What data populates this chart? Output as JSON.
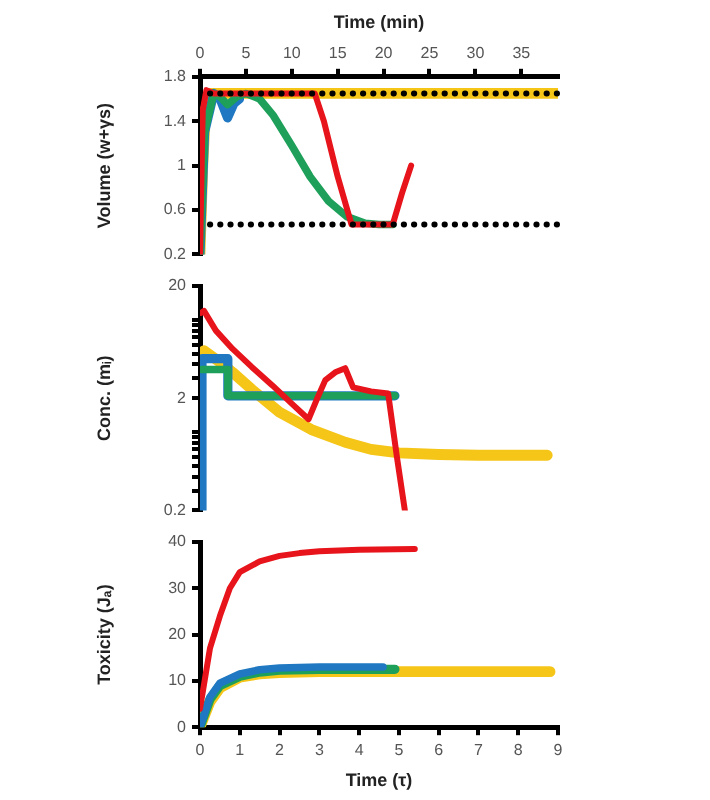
{
  "chart_data": [
    {
      "type": "line",
      "xlabel": "Time (min)",
      "ylabel": "Volume (w+γs)",
      "xlim": [
        0,
        39
      ],
      "xticks": [
        0,
        5,
        10,
        15,
        20,
        25,
        30,
        35
      ],
      "ylim": [
        0.2,
        1.8
      ],
      "yticks": [
        0.2,
        0.6,
        1,
        1.4,
        1.8
      ],
      "grid": false,
      "legend": false,
      "marker": "none",
      "line_style": "solid",
      "ref_lines": [
        {
          "axis": "y",
          "value": 1.65,
          "color": "#000000",
          "line_style": "dotted"
        },
        {
          "axis": "y",
          "value": 0.47,
          "color": "#000000",
          "line_style": "dotted"
        }
      ],
      "series": [
        {
          "color": "#f5c518",
          "x": [
            0,
            0.3,
            0.6,
            1,
            39
          ],
          "values": [
            0.2,
            1.0,
            1.5,
            1.65,
            1.65
          ]
        },
        {
          "color": "#1f78c1",
          "x": [
            0,
            0.5,
            1.5,
            2.2,
            3,
            3.7,
            4.3
          ],
          "values": [
            0.2,
            1.3,
            1.65,
            1.6,
            1.43,
            1.56,
            1.6
          ]
        },
        {
          "color": "#1ea05a",
          "x": [
            0,
            0.5,
            1.5,
            2.2,
            3,
            4,
            5,
            6.5,
            8,
            10,
            12,
            14,
            16,
            18,
            19.5,
            21
          ],
          "values": [
            0.2,
            1.3,
            1.65,
            1.62,
            1.55,
            1.62,
            1.65,
            1.6,
            1.45,
            1.18,
            0.9,
            0.68,
            0.54,
            0.48,
            0.47,
            0.47
          ]
        },
        {
          "color": "#e8141b",
          "x": [
            0,
            0.3,
            0.7,
            1.5,
            12.5,
            13.5,
            15,
            16.5,
            21,
            22,
            23
          ],
          "values": [
            0.2,
            1.5,
            1.68,
            1.65,
            1.65,
            1.4,
            0.9,
            0.47,
            0.47,
            0.75,
            1.0
          ]
        }
      ]
    },
    {
      "type": "line",
      "ylabel": "Conc. (mᵢ)",
      "xlim": [
        0,
        9
      ],
      "log": "y",
      "ylim": [
        0.2,
        20
      ],
      "yticks": [
        0.2,
        {
          "value": 0.3,
          "label": null
        },
        {
          "value": 0.4,
          "label": null
        },
        {
          "value": 0.5,
          "label": null
        },
        {
          "value": 0.6,
          "label": null
        },
        {
          "value": 0.7,
          "label": null
        },
        {
          "value": 0.8,
          "label": null
        },
        {
          "value": 0.9,
          "label": null
        },
        {
          "value": 1,
          "label": null
        },
        2,
        {
          "value": 3,
          "label": null
        },
        {
          "value": 4,
          "label": null
        },
        {
          "value": 5,
          "label": null
        },
        {
          "value": 6,
          "label": null
        },
        {
          "value": 7,
          "label": null
        },
        {
          "value": 8,
          "label": null
        },
        {
          "value": 9,
          "label": null
        },
        {
          "value": 10,
          "label": null
        },
        20
      ],
      "tick_labels": "y",
      "grid": false,
      "legend": false,
      "marker": "none",
      "line_style": "solid",
      "series": [
        {
          "color": "#f5c518",
          "x": [
            0.1,
            0.5,
            0.82,
            1.3,
            2,
            2.8,
            3.65,
            4.3,
            5,
            6,
            7,
            8.73
          ],
          "values": [
            5.3,
            4.2,
            3.4,
            2.4,
            1.5,
            1.05,
            0.81,
            0.7,
            0.65,
            0.63,
            0.62,
            0.62
          ]
        },
        {
          "color": "#1f78c1",
          "x": [
            0.05,
            0.05,
            0.7,
            0.7,
            4.9
          ],
          "values": [
            0.2,
            4.5,
            4.5,
            2.1,
            2.1
          ]
        },
        {
          "color": "#1ea05a",
          "x": [
            0.05,
            0.7,
            0.7,
            4.9
          ],
          "values": [
            3.6,
            3.6,
            2.1,
            2.1
          ]
        },
        {
          "color": "#e8141b",
          "x": [
            0.03,
            0.1,
            0.4,
            0.82,
            1.3,
            1.82,
            2.3,
            2.73,
            2.95,
            3.15,
            3.4,
            3.65,
            3.85,
            4.3,
            4.73,
            4.95,
            5.15
          ],
          "values": [
            11.5,
            12,
            8,
            5.5,
            3.8,
            2.6,
            1.8,
            1.3,
            2.0,
            2.9,
            3.4,
            3.7,
            2.5,
            2.3,
            2.2,
            0.6,
            0.2
          ]
        }
      ]
    },
    {
      "type": "line",
      "xlabel": "Time (τ)",
      "ylabel": "Toxicity (Jₐ)",
      "xlim": [
        0,
        9
      ],
      "xticks": [
        0,
        1,
        2,
        3,
        4,
        5,
        6,
        7,
        8,
        9
      ],
      "ylim": [
        0,
        40
      ],
      "yticks": [
        0,
        10,
        20,
        30,
        40
      ],
      "grid": false,
      "legend": false,
      "marker": "none",
      "line_style": "solid",
      "series": [
        {
          "color": "#f5c518",
          "x": [
            0,
            0.25,
            0.5,
            1,
            1.5,
            2,
            3,
            4,
            8.8
          ],
          "values": [
            0,
            5.5,
            8.5,
            10.8,
            11.5,
            11.8,
            12,
            12,
            12
          ]
        },
        {
          "color": "#1ea05a",
          "x": [
            0,
            0.25,
            0.5,
            1,
            1.5,
            2,
            3,
            4,
            4.9
          ],
          "values": [
            0,
            6,
            9,
            11,
            11.9,
            12.3,
            12.5,
            12.5,
            12.5
          ]
        },
        {
          "color": "#1f78c1",
          "x": [
            0,
            0.25,
            0.5,
            1,
            1.5,
            2,
            3,
            4,
            4.6
          ],
          "values": [
            0,
            6.5,
            9.5,
            11.5,
            12.4,
            12.8,
            13,
            13,
            13
          ]
        },
        {
          "color": "#e8141b",
          "x": [
            0,
            0.25,
            0.5,
            0.75,
            1,
            1.5,
            2,
            2.5,
            3,
            4,
            5.4
          ],
          "values": [
            4,
            17,
            24,
            30,
            33.5,
            35.8,
            37,
            37.6,
            38,
            38.3,
            38.5
          ]
        }
      ]
    }
  ]
}
